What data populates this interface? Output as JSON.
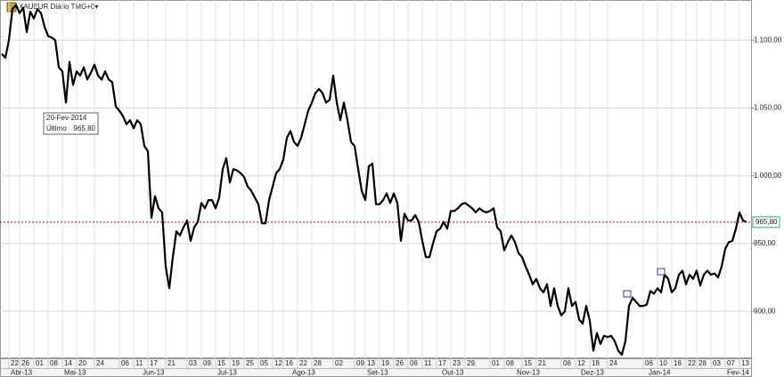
{
  "chart_data": {
    "type": "line",
    "title": "XAUEUR Diário TMG+0▾",
    "series": [
      {
        "name": "XAUEUR",
        "color": "#000000",
        "values": [
          1090,
          1087,
          1100,
          1123,
          1126,
          1120,
          1124,
          1106,
          1121,
          1116,
          1123,
          1120,
          1110,
          1103,
          1102,
          1100,
          1080,
          1077,
          1054,
          1084,
          1067,
          1077,
          1074,
          1080,
          1071,
          1076,
          1082,
          1074,
          1071,
          1077,
          1071,
          1069,
          1051,
          1048,
          1044,
          1038,
          1041,
          1035,
          1041,
          1038,
          1022,
          1018,
          969,
          985,
          976,
          973,
          933,
          917,
          940,
          959,
          956,
          962,
          967,
          952,
          962,
          966,
          980,
          976,
          982,
          982,
          976,
          984,
          1005,
          1013,
          995,
          1005,
          1004,
          1002,
          999,
          992,
          989,
          984,
          979,
          965,
          965,
          982,
          992,
          1002,
          1005,
          1012,
          1028,
          1033,
          1025,
          1022,
          1028,
          1038,
          1048,
          1054,
          1061,
          1064,
          1061,
          1054,
          1056,
          1074,
          1054,
          1041,
          1054,
          1041,
          1025,
          1022,
          1005,
          989,
          982,
          1007,
          1009,
          979,
          979,
          982,
          987,
          980,
          987,
          980,
          952,
          972,
          967,
          967,
          971,
          966,
          952,
          940,
          940,
          950,
          959,
          961,
          966,
          961,
          974,
          974,
          976,
          979,
          980,
          978,
          976,
          973,
          976,
          974,
          973,
          974,
          976,
          962,
          959,
          945,
          951,
          956,
          951,
          943,
          940,
          933,
          927,
          920,
          924,
          917,
          914,
          920,
          904,
          917,
          904,
          897,
          900,
          917,
          904,
          907,
          894,
          891,
          904,
          893,
          871,
          884,
          876,
          882,
          881,
          882,
          878,
          871,
          868,
          878,
          904,
          910,
          907,
          904,
          904,
          905,
          915,
          913,
          917,
          914,
          927,
          924,
          914,
          917,
          927,
          930,
          920,
          927,
          924,
          930,
          919,
          927,
          930,
          927,
          928,
          925,
          933,
          946,
          951,
          952,
          961,
          973,
          967,
          965.8
        ]
      }
    ],
    "last_value_label": "965,80",
    "info_box": {
      "date": "20-Fev-2014",
      "label": "Último",
      "value": "965,80"
    },
    "ylim": [
      866,
      1129
    ],
    "yticks": [
      {
        "value": 900,
        "label": "900,00"
      },
      {
        "value": 950,
        "label": "950,00"
      },
      {
        "value": 1000,
        "label": "1.000,00"
      },
      {
        "value": 1050,
        "label": "1.050,00"
      },
      {
        "value": 1100,
        "label": "1.100,00"
      }
    ],
    "xlim": [
      0,
      210
    ],
    "xticks": [
      {
        "value": 2,
        "label": "22"
      },
      {
        "value": 5,
        "label": "26"
      },
      {
        "value": 9,
        "label": "01"
      },
      {
        "value": 13,
        "label": "08"
      },
      {
        "value": 17,
        "label": "14"
      },
      {
        "value": 21,
        "label": "20"
      },
      {
        "value": 26,
        "label": "24"
      },
      {
        "value": 33,
        "label": "06"
      },
      {
        "value": 37,
        "label": "11"
      },
      {
        "value": 41,
        "label": "17"
      },
      {
        "value": 46,
        "label": "21"
      },
      {
        "value": 52,
        "label": "03"
      },
      {
        "value": 56,
        "label": "09"
      },
      {
        "value": 60,
        "label": "15"
      },
      {
        "value": 64,
        "label": "19"
      },
      {
        "value": 68,
        "label": "25"
      },
      {
        "value": 72,
        "label": "05"
      },
      {
        "value": 76,
        "label": "12"
      },
      {
        "value": 79,
        "label": "16"
      },
      {
        "value": 83,
        "label": "22"
      },
      {
        "value": 87,
        "label": "28"
      },
      {
        "value": 93,
        "label": "02"
      },
      {
        "value": 99,
        "label": "09"
      },
      {
        "value": 102,
        "label": "13"
      },
      {
        "value": 106,
        "label": "19"
      },
      {
        "value": 110,
        "label": "26"
      },
      {
        "value": 114,
        "label": "06"
      },
      {
        "value": 118,
        "label": "11"
      },
      {
        "value": 122,
        "label": "17"
      },
      {
        "value": 126,
        "label": "23"
      },
      {
        "value": 130,
        "label": "29"
      },
      {
        "value": 137,
        "label": "01"
      },
      {
        "value": 141,
        "label": "08"
      },
      {
        "value": 146,
        "label": "15"
      },
      {
        "value": 150,
        "label": "21"
      },
      {
        "value": 157,
        "label": "06"
      },
      {
        "value": 161,
        "label": "12"
      },
      {
        "value": 165,
        "label": "18"
      },
      {
        "value": 170,
        "label": "24"
      },
      {
        "value": 180,
        "label": "06"
      },
      {
        "value": 184,
        "label": "10"
      },
      {
        "value": 188,
        "label": "16"
      },
      {
        "value": 192,
        "label": "22"
      },
      {
        "value": 195,
        "label": "28"
      },
      {
        "value": 199,
        "label": "03"
      },
      {
        "value": 203,
        "label": "07"
      },
      {
        "value": 207,
        "label": "13"
      }
    ],
    "month_labels": [
      {
        "value": 2,
        "label": "Abr-13"
      },
      {
        "value": 17,
        "label": "Mai-13"
      },
      {
        "value": 39,
        "label": "Jun-13"
      },
      {
        "value": 60,
        "label": "Jul-13"
      },
      {
        "value": 81,
        "label": "Ago-13"
      },
      {
        "value": 102,
        "label": "Set-13"
      },
      {
        "value": 123,
        "label": "Out-13"
      },
      {
        "value": 144,
        "label": "Nov-13"
      },
      {
        "value": 162,
        "label": "Dez-13"
      },
      {
        "value": 181,
        "label": "Jan-14"
      },
      {
        "value": 203,
        "label": "Fev-14"
      }
    ],
    "grid": true,
    "reference_color": "#c00000"
  }
}
